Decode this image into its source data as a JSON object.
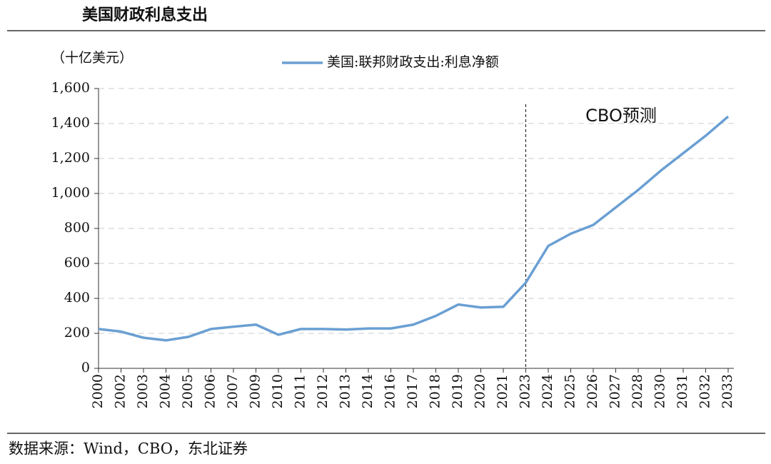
{
  "chart_data": {
    "type": "line",
    "title": "美国财政利息支出",
    "y_label": "（十亿美元）",
    "source": "数据来源：Wind，CBO，东北证券",
    "categories": [
      "2000",
      "2002",
      "2003",
      "2004",
      "2005",
      "2006",
      "2007",
      "2009",
      "2010",
      "2011",
      "2012",
      "2013",
      "2014",
      "2016",
      "2017",
      "2018",
      "2019",
      "2020",
      "2021",
      "2023",
      "2024",
      "2025",
      "2026",
      "2027",
      "2028",
      "2030",
      "2031",
      "2032",
      "2033"
    ],
    "series": [
      {
        "name": "美国:联邦财政支出:利息净额",
        "color": "#6a9fd3",
        "values": [
          225,
          210,
          175,
          160,
          180,
          225,
          238,
          250,
          192,
          225,
          225,
          222,
          228,
          228,
          250,
          300,
          365,
          348,
          352,
          490,
          700,
          770,
          820,
          920,
          1020,
          1130,
          1230,
          1330,
          1440
        ]
      }
    ],
    "annotations": [
      {
        "text": "CBO预测",
        "x": "2023"
      }
    ],
    "ylim": [
      0,
      1600
    ],
    "yticks": [
      0,
      200,
      400,
      600,
      800,
      {
        "value": 1000,
        "label": "1,000"
      },
      {
        "value": 1200,
        "label": "1,200"
      },
      {
        "value": 1400,
        "label": "1,400"
      },
      {
        "value": 1600,
        "label": "1,600"
      }
    ],
    "grid": true
  }
}
